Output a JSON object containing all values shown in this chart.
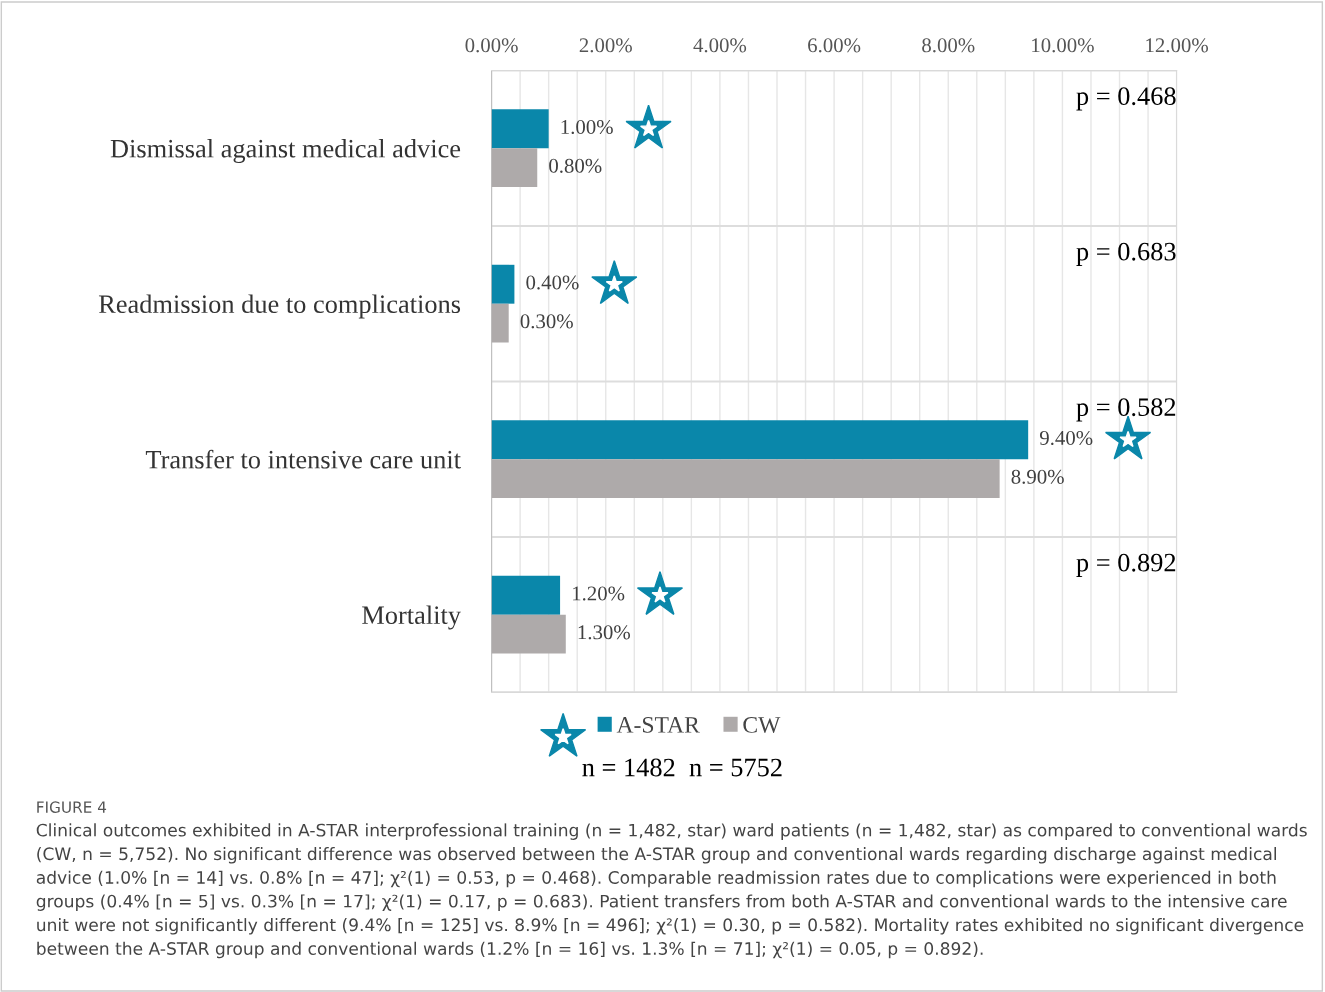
{
  "chart_data": {
    "type": "bar",
    "orientation": "horizontal",
    "categories": [
      "Dismissal against medical advice",
      "Readmission due to complications",
      "Transfer to intensive care unit",
      "Mortality"
    ],
    "series": [
      {
        "name": "A-STAR",
        "color": "#0a87aa",
        "values": [
          1.0,
          0.4,
          9.4,
          1.2
        ],
        "value_labels": [
          "1.00%",
          "0.40%",
          "9.40%",
          "1.20%"
        ]
      },
      {
        "name": "CW",
        "color": "#aeaaaa",
        "values": [
          0.8,
          0.3,
          8.9,
          1.3
        ],
        "value_labels": [
          "0.80%",
          "0.30%",
          "8.90%",
          "1.30%"
        ]
      }
    ],
    "xlim": [
      0,
      12
    ],
    "xticks": [
      {
        "value": 0,
        "label": "0.00%"
      },
      {
        "value": 0.5,
        "label": null
      },
      {
        "value": 1,
        "label": null
      },
      {
        "value": 1.5,
        "label": null
      },
      {
        "value": 2,
        "label": "2.00%"
      },
      {
        "value": 2.5,
        "label": null
      },
      {
        "value": 3,
        "label": null
      },
      {
        "value": 3.5,
        "label": null
      },
      {
        "value": 4,
        "label": "4.00%"
      },
      {
        "value": 4.5,
        "label": null
      },
      {
        "value": 5,
        "label": null
      },
      {
        "value": 5.5,
        "label": null
      },
      {
        "value": 6,
        "label": "6.00%"
      },
      {
        "value": 6.5,
        "label": null
      },
      {
        "value": 7,
        "label": null
      },
      {
        "value": 7.5,
        "label": null
      },
      {
        "value": 8,
        "label": "8.00%"
      },
      {
        "value": 8.5,
        "label": null
      },
      {
        "value": 9,
        "label": null
      },
      {
        "value": 9.5,
        "label": null
      },
      {
        "value": 10,
        "label": "10.00%"
      },
      {
        "value": 10.5,
        "label": null
      },
      {
        "value": 11,
        "label": null
      },
      {
        "value": 11.5,
        "label": null
      },
      {
        "value": 12,
        "label": "12.00%"
      }
    ],
    "grid": true,
    "legend": "bottom",
    "annotations": [
      "p = 0.468",
      "p = 0.683",
      "p = 0.582",
      "p = 0.892",
      "n = 1482  n = 5752",
      "FIGURE 4",
      "Clinical outcomes exhibited in A-STAR interprofessional training (n = 1,482, star) ward patients (n = 1,482, star) as compared to conventional wards (CW, n = 5,752). No significant difference was observed between the A-STAR group and conventional wards regarding discharge against medical advice (1.0% [n = 14] vs. 0.8% [n = 47]; χ²(1) = 0.53, p = 0.468). Comparable readmission rates due to complications were experienced in both groups (0.4% [n = 5] vs. 0.3% [n = 17]; χ²(1) = 0.17, p = 0.683). Patient transfers from both A-STAR and conventional wards to the intensive care unit were not significantly different (9.4% [n = 125] vs. 8.9% [n = 496]; χ²(1) = 0.30, p = 0.582). Mortality rates exhibited no significant divergence between the A-STAR group and conventional wards (1.2% [n = 16] vs. 1.3% [n = 71]; χ²(1) = 0.05, p = 0.892)."
    ]
  }
}
